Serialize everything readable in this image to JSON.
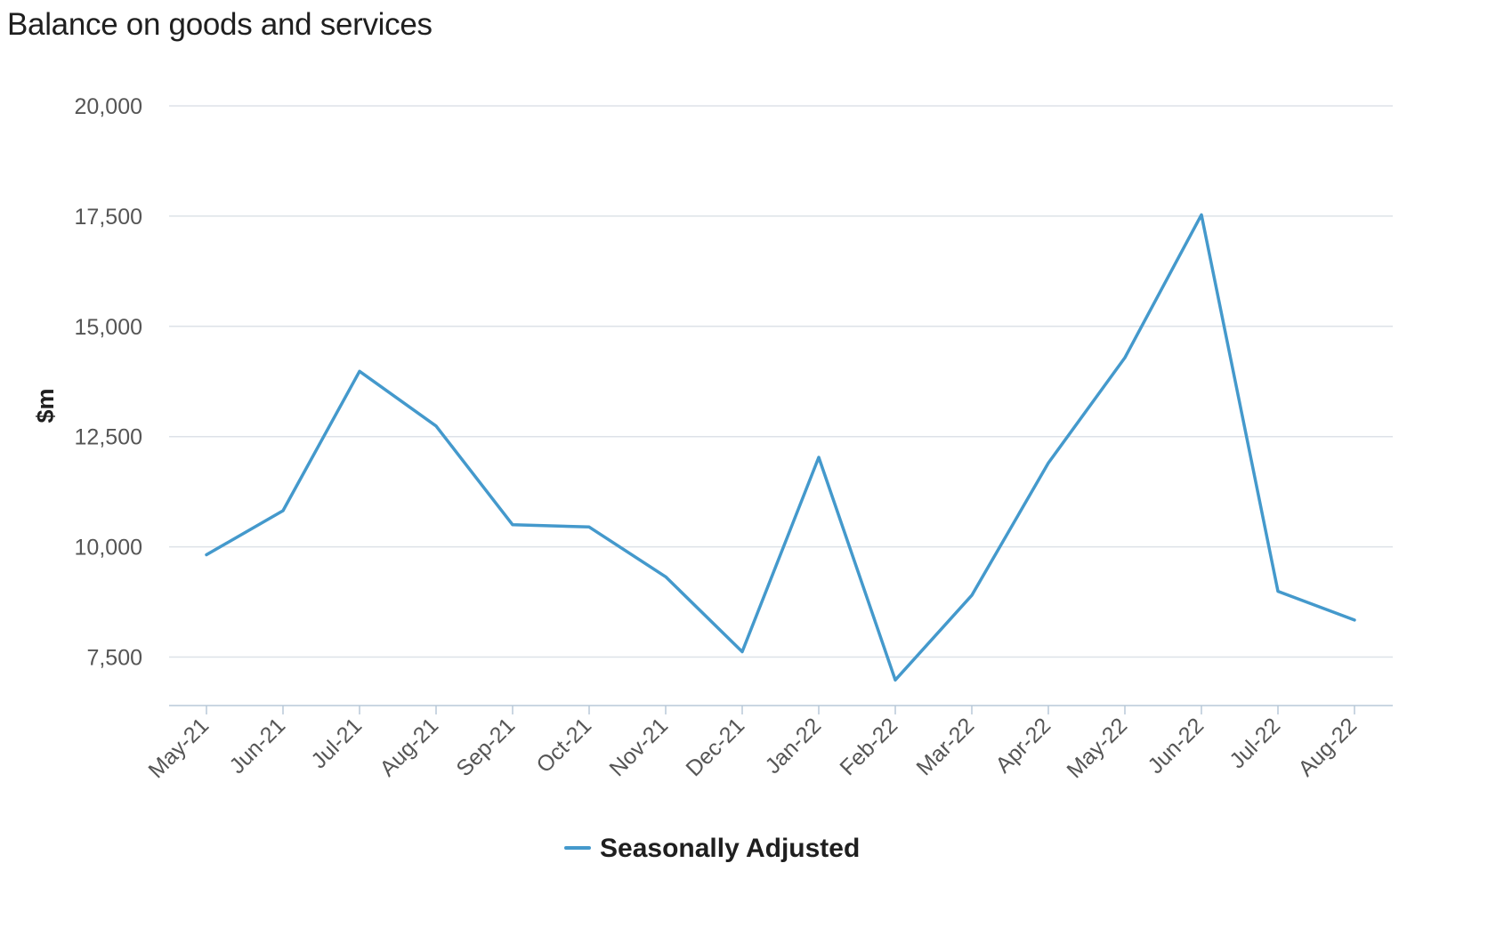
{
  "chart_data": {
    "type": "line",
    "title": "Balance on goods and services",
    "xlabel": "",
    "ylabel": "$m",
    "ylim": [
      6400,
      20000
    ],
    "yticks": [
      7500,
      10000,
      12500,
      15000,
      17500,
      20000
    ],
    "ytick_labels": [
      "7,500",
      "10,000",
      "12,500",
      "15,000",
      "17,500",
      "20,000"
    ],
    "grid": true,
    "legend_position": "bottom-center",
    "categories": [
      "May-21",
      "Jun-21",
      "Jul-21",
      "Aug-21",
      "Sep-21",
      "Oct-21",
      "Nov-21",
      "Dec-21",
      "Jan-22",
      "Feb-22",
      "Mar-22",
      "Apr-22",
      "May-22",
      "Jun-22",
      "Jul-22",
      "Aug-22"
    ],
    "series": [
      {
        "name": "Seasonally Adjusted",
        "color": "#4499cc",
        "values": [
          9820,
          10820,
          13980,
          12740,
          10500,
          10450,
          9320,
          7620,
          12030,
          6980,
          8900,
          11900,
          14290,
          17530,
          8990,
          8340
        ]
      }
    ]
  }
}
